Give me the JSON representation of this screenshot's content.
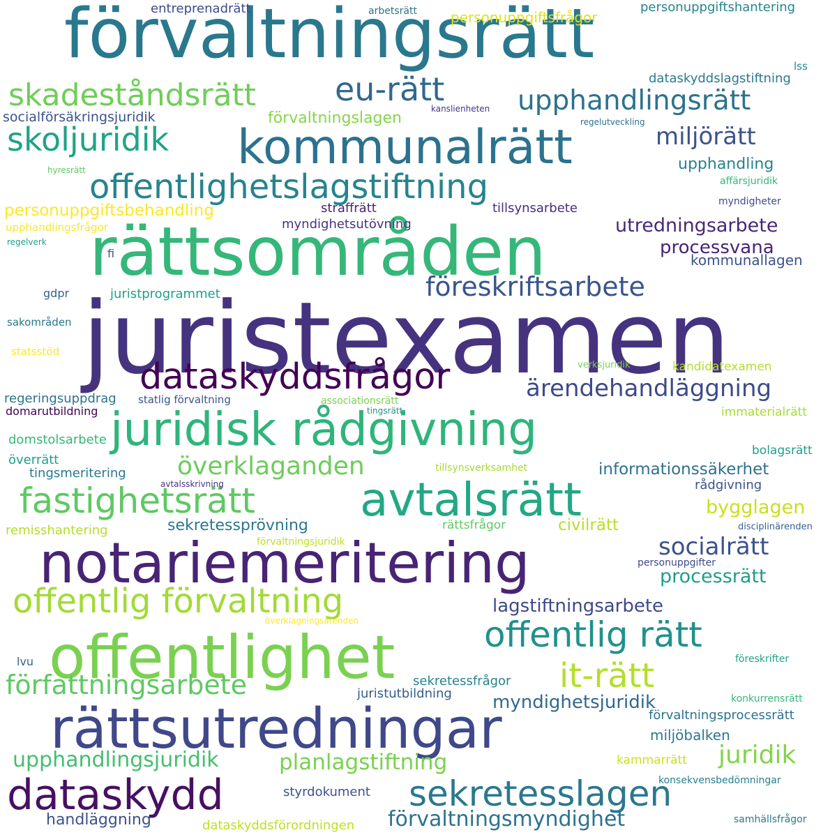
{
  "background": "#ffffff",
  "palette": [
    "#440154",
    "#46327e",
    "#365c8d",
    "#277f8e",
    "#1fa187",
    "#4ac16d",
    "#a0da39",
    "#fde725"
  ],
  "words": [
    {
      "text": "juristexamen",
      "color": "#46337f"
    },
    {
      "text": "förvaltningsrätt",
      "color": "#2a788e"
    },
    {
      "text": "rättsområden",
      "color": "#35b779"
    },
    {
      "text": "notariemeritering",
      "color": "#482475"
    },
    {
      "text": "rättsutredningar",
      "color": "#3f4889"
    },
    {
      "text": "offentlighet",
      "color": "#7ad151"
    },
    {
      "text": "kommunalrätt",
      "color": "#2c728e"
    },
    {
      "text": "juridisk rådgivning",
      "color": "#2fb47c"
    },
    {
      "text": "avtalsrätt",
      "color": "#22a884"
    },
    {
      "text": "offentlighetslagstiftning",
      "color": "#25848e"
    },
    {
      "text": "dataskydd",
      "color": "#471063"
    },
    {
      "text": "dataskyddsfrågor",
      "color": "#440154"
    },
    {
      "text": "fastighetsrätt",
      "color": "#5ec962"
    },
    {
      "text": "offentlig förvaltning",
      "color": "#a2da37"
    },
    {
      "text": "offentlig rätt",
      "color": "#21918c"
    },
    {
      "text": "sekretesslagen",
      "color": "#2a788e"
    },
    {
      "text": "eu-rätt",
      "color": "#31688e"
    },
    {
      "text": "skadeståndsrätt",
      "color": "#6ece58"
    },
    {
      "text": "skoljuridik",
      "color": "#20a386"
    },
    {
      "text": "upphandlingsrätt",
      "color": "#2c728e"
    },
    {
      "text": "föreskriftsarbete",
      "color": "#39568c"
    },
    {
      "text": "it-rätt",
      "color": "#b5de2b"
    },
    {
      "text": "överklaganden",
      "color": "#6ccd5a"
    },
    {
      "text": "författningsarbete",
      "color": "#5ec962"
    },
    {
      "text": "ärendehandläggning",
      "color": "#3e4a89"
    },
    {
      "text": "socialrätt",
      "color": "#3b528b"
    },
    {
      "text": "miljörätt",
      "color": "#3b528b"
    },
    {
      "text": "upphandlingsjuridik",
      "color": "#44bf70"
    },
    {
      "text": "planlagstiftning",
      "color": "#7ad151"
    },
    {
      "text": "juridik",
      "color": "#84d44b"
    },
    {
      "text": "förvaltningsmyndighet",
      "color": "#2c728e"
    },
    {
      "text": "utredningsarbete",
      "color": "#482878"
    },
    {
      "text": "processvana",
      "color": "#482475"
    },
    {
      "text": "myndighetsjuridik",
      "color": "#31688e"
    },
    {
      "text": "processrätt",
      "color": "#1f9e89"
    },
    {
      "text": "lagstiftningsarbete",
      "color": "#3e4a89"
    },
    {
      "text": "personuppgiftsbehandling",
      "color": "#fde725"
    },
    {
      "text": "informationssäkerhet",
      "color": "#2d718e"
    },
    {
      "text": "bygglagen",
      "color": "#c8e020"
    },
    {
      "text": "förvaltningslagen",
      "color": "#86d549"
    },
    {
      "text": "upphandling",
      "color": "#26828e"
    },
    {
      "text": "kommunallagen",
      "color": "#3b528b"
    },
    {
      "text": "sekretessprövning",
      "color": "#2a788e"
    },
    {
      "text": "socialförsäkringsjuridik",
      "color": "#3b528b"
    },
    {
      "text": "miljöbalken",
      "color": "#2a788e"
    },
    {
      "text": "myndighetsutövning",
      "color": "#46337f"
    },
    {
      "text": "straffrätt",
      "color": "#482475"
    },
    {
      "text": "tillsynsarbete",
      "color": "#472d7b"
    },
    {
      "text": "civilrätt",
      "color": "#b8de29"
    },
    {
      "text": "handläggning",
      "color": "#3b528b"
    },
    {
      "text": "juristprogrammet",
      "color": "#1f9e89"
    },
    {
      "text": "regeringsuppdrag",
      "color": "#2c728e"
    },
    {
      "text": "domstolsarbete",
      "color": "#35b779"
    },
    {
      "text": "tingsmeritering",
      "color": "#2a788e"
    },
    {
      "text": "remisshantering",
      "color": "#b5de2b"
    },
    {
      "text": "sekretessfrågor",
      "color": "#26828e"
    },
    {
      "text": "juristutbildning",
      "color": "#365c8d"
    },
    {
      "text": "styrdokument",
      "color": "#3b528b"
    },
    {
      "text": "dataskyddsförordningen",
      "color": "#bddf26"
    },
    {
      "text": "förvaltningsprocessrätt",
      "color": "#2c728e"
    },
    {
      "text": "entreprenadrätt",
      "color": "#3e4a89"
    },
    {
      "text": "personuppgiftsfrågor",
      "color": "#dde318"
    },
    {
      "text": "personuppgiftshantering",
      "color": "#25848e"
    },
    {
      "text": "dataskyddslagstiftning",
      "color": "#2a788e"
    },
    {
      "text": "rådgivning",
      "color": "#3b528b"
    },
    {
      "text": "bolagsrätt",
      "color": "#1f9e89"
    },
    {
      "text": "immaterialrätt",
      "color": "#a8db34"
    },
    {
      "text": "kandidatexamen",
      "color": "#b5de2b"
    },
    {
      "text": "kammarrätt",
      "color": "#cae11f"
    },
    {
      "text": "rättsfrågor",
      "color": "#5ec962"
    },
    {
      "text": "överrätt",
      "color": "#1f9e89"
    },
    {
      "text": "upphandlingsfrågor",
      "color": "#fde725"
    },
    {
      "text": "gdpr",
      "color": "#355f8d"
    },
    {
      "text": "sakområden",
      "color": "#2a788e"
    },
    {
      "text": "statsstöd",
      "color": "#fde725"
    },
    {
      "text": "domarutbildning",
      "color": "#440154"
    },
    {
      "text": "statlig förvaltning",
      "color": "#3b528b"
    },
    {
      "text": "associationsrätt",
      "color": "#7ad151"
    },
    {
      "text": "tingsrätt",
      "color": "#21918c"
    },
    {
      "text": "tillsynsverksamhet",
      "color": "#a8db34"
    },
    {
      "text": "förvaltningsjuridik",
      "color": "#bddf26"
    },
    {
      "text": "avtalsskrivning",
      "color": "#46327e"
    },
    {
      "text": "överklagningsärenden",
      "color": "#fde725"
    },
    {
      "text": "personuppgifter",
      "color": "#3e4a89"
    },
    {
      "text": "disciplinärenden",
      "color": "#33638d"
    },
    {
      "text": "konsekvensbedömningar",
      "color": "#277f8e"
    },
    {
      "text": "samhällsfrågor",
      "color": "#2a788e"
    },
    {
      "text": "konkurrensrätt",
      "color": "#35b779"
    },
    {
      "text": "föreskrifter",
      "color": "#20a386"
    },
    {
      "text": "lvu",
      "color": "#355f8d"
    },
    {
      "text": "arbetsrätt",
      "color": "#2c728e"
    },
    {
      "text": "lss",
      "color": "#26828e"
    },
    {
      "text": "kanslienheten",
      "color": "#46337f"
    },
    {
      "text": "regelutveckling",
      "color": "#2c728e"
    },
    {
      "text": "hyresrätt",
      "color": "#5ec962"
    },
    {
      "text": "affärsjuridik",
      "color": "#35b779"
    },
    {
      "text": "myndigheter",
      "color": "#3e4a89"
    },
    {
      "text": "regelverk",
      "color": "#1f9e89"
    },
    {
      "text": "fi",
      "color": "#3b528b"
    },
    {
      "text": "verksjuridik",
      "color": "#7ad151"
    }
  ]
}
